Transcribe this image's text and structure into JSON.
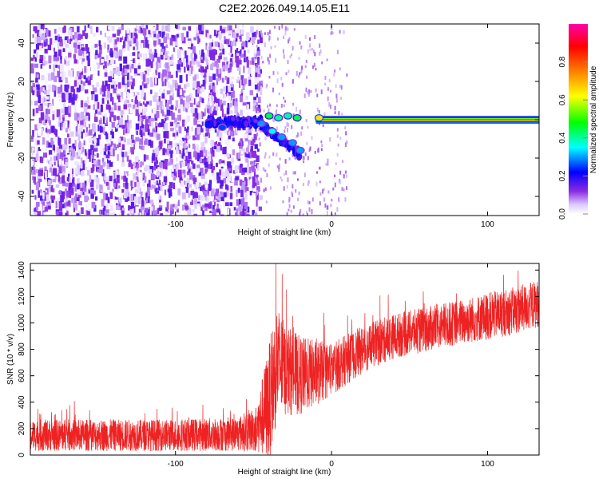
{
  "title": "C2E2.2026.049.14.05.E11",
  "colors": {
    "frame": "#000000",
    "snr_line": "#ee2222",
    "scatter_purple": "#7722ee",
    "carrier": "#ff0000"
  },
  "chart_data": [
    {
      "type": "heatmap",
      "title": "",
      "xlabel": "Height of straight line (km)",
      "ylabel": "Frequency (Hz)",
      "xlim": [
        -193,
        133
      ],
      "ylim": [
        -50,
        50
      ],
      "xticks": [
        -100,
        0,
        100
      ],
      "xtick_labels": [
        "-100",
        "0",
        "100"
      ],
      "yticks": [
        -40,
        -20,
        0,
        20,
        40
      ],
      "ytick_labels": [
        "-40",
        "-20",
        "0",
        "20",
        "40"
      ],
      "colorbar": {
        "label": "Normalized spectral amplitude",
        "range": [
          0,
          1
        ],
        "ticks": [
          0.0,
          0.2,
          0.4,
          0.6,
          0.8
        ],
        "tick_labels": [
          "0.0",
          "0.2",
          "0.4",
          "0.6",
          "0.8"
        ],
        "colormap": "rainbow (white-purple-blue-cyan-green-yellow-orange-red-magenta)"
      },
      "features": {
        "noise_region_x": [
          -193,
          -50
        ],
        "noise_amplitude": 0.15,
        "carrier_line": {
          "frequency": 0,
          "x_start": -10,
          "x_end": 133,
          "amplitude": 0.85
        },
        "bright_blobs": [
          {
            "x": -40,
            "f": 2,
            "amp": 0.45
          },
          {
            "x": -34,
            "f": 1,
            "amp": 0.4
          },
          {
            "x": -28,
            "f": 2,
            "amp": 0.4
          },
          {
            "x": -22,
            "f": 1,
            "amp": 0.45
          },
          {
            "x": -8,
            "f": 1,
            "amp": 0.65
          },
          {
            "x": -45,
            "f": -2,
            "amp": 0.3
          },
          {
            "x": -38,
            "f": -6,
            "amp": 0.35
          },
          {
            "x": -32,
            "f": -9,
            "amp": 0.3
          },
          {
            "x": -25,
            "f": -12,
            "amp": 0.3
          },
          {
            "x": -20,
            "f": -16,
            "amp": 0.3
          },
          {
            "x": -70,
            "f": -4,
            "amp": 0.25
          }
        ]
      }
    },
    {
      "type": "line",
      "title": "",
      "xlabel": "Height of straight line (km)",
      "ylabel": "SNR (10 * v/v)",
      "xlim": [
        -193,
        133
      ],
      "ylim": [
        0,
        1450
      ],
      "xticks": [
        -100,
        0,
        100
      ],
      "xtick_labels": [
        "-100",
        "0",
        "100"
      ],
      "yticks": [
        0,
        200,
        400,
        600,
        800,
        1000,
        1200,
        1400
      ],
      "ytick_labels": [
        "0",
        "200",
        "400",
        "600",
        "800",
        "1000",
        "1200",
        "1400"
      ],
      "series": [
        {
          "name": "SNR",
          "x": [
            -193,
            -150,
            -100,
            -60,
            -48,
            -40,
            -35,
            -30,
            -20,
            -10,
            0,
            20,
            40,
            60,
            80,
            100,
            120,
            133
          ],
          "y_mean": [
            150,
            150,
            150,
            160,
            200,
            400,
            700,
            650,
            600,
            620,
            650,
            800,
            900,
            950,
            1000,
            1050,
            1100,
            1150
          ],
          "y_spread": [
            120,
            120,
            120,
            130,
            180,
            450,
            450,
            350,
            300,
            250,
            200,
            180,
            170,
            170,
            170,
            180,
            180,
            180
          ]
        }
      ]
    }
  ]
}
